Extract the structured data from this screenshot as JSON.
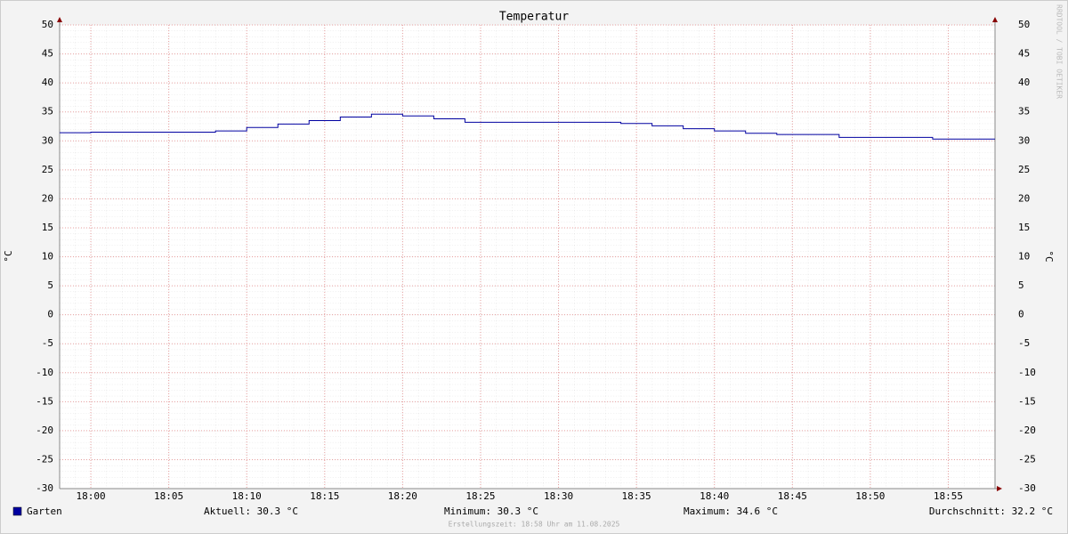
{
  "chart_data": {
    "type": "line",
    "title": "Temperatur",
    "y_label": "°C",
    "y2_label": "°C",
    "watermark": "RRDTOOL / TOBI OETIKER",
    "footer": "Erstellungszeit: 18:58 Uhr am 11.08.2025",
    "unit": "°C",
    "step": "post",
    "grid": true,
    "x": [
      "17:58",
      "18:00",
      "18:08",
      "18:10",
      "18:12",
      "18:14",
      "18:16",
      "18:18",
      "18:20",
      "18:22",
      "18:24",
      "18:34",
      "18:36",
      "18:38",
      "18:40",
      "18:42",
      "18:44",
      "18:48",
      "18:54"
    ],
    "xlim": [
      "17:58",
      "18:58"
    ],
    "xticks": [
      "18:00",
      "18:05",
      "18:10",
      "18:15",
      "18:20",
      "18:25",
      "18:30",
      "18:35",
      "18:40",
      "18:45",
      "18:50",
      "18:55"
    ],
    "ylim": [
      -30,
      50
    ],
    "yticks": [
      -30,
      -25,
      -20,
      -15,
      -10,
      -5,
      0,
      5,
      10,
      15,
      20,
      25,
      30,
      35,
      40,
      45,
      50
    ],
    "series": [
      {
        "name": "Garten",
        "color": "#0000a0",
        "values": [
          31.4,
          31.5,
          31.7,
          32.3,
          32.9,
          33.5,
          34.1,
          34.6,
          34.3,
          33.8,
          33.2,
          33.0,
          32.6,
          32.1,
          31.7,
          31.3,
          31.1,
          30.6,
          30.3
        ]
      }
    ],
    "stats": [
      {
        "label": "Aktuell:",
        "value": 30.3
      },
      {
        "label": "Minimum:",
        "value": 30.3
      },
      {
        "label": "Maximum:",
        "value": 34.6
      },
      {
        "label": "Durchschnitt:",
        "value": 32.2
      }
    ]
  }
}
